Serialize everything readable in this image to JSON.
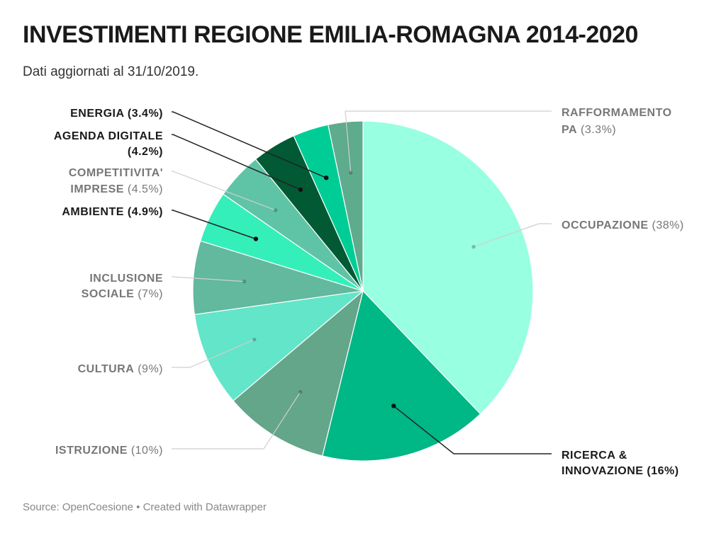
{
  "header": {
    "title": "INVESTIMENTI REGIONE EMILIA-ROMAGNA 2014-2020",
    "subtitle": "Dati aggiornati al 31/10/2019."
  },
  "footer": {
    "source_label": "Source:",
    "source": "OpenCoesione",
    "separator": "•",
    "credit": "Created with Datawrapper"
  },
  "chart_data": {
    "type": "pie",
    "slices": [
      {
        "name": "OCCUPAZIONE",
        "value": 38,
        "pct_label": "(38%)",
        "color": "#98ffe0",
        "emphasis": false,
        "lines": [
          {
            "name": "OCCUPAZIONE",
            "pct": "(38%)"
          }
        ]
      },
      {
        "name": "RICERCA & INNOVAZIONE",
        "value": 16,
        "pct_label": "(16%)",
        "color": "#00b786",
        "emphasis": true,
        "lines": [
          {
            "name": "RICERCA &",
            "pct": ""
          },
          {
            "name": "INNOVAZIONE",
            "pct": "(16%)"
          }
        ]
      },
      {
        "name": "ISTRUZIONE",
        "value": 10,
        "pct_label": "(10%)",
        "color": "#64a68a",
        "emphasis": false,
        "lines": [
          {
            "name": "ISTRUZIONE",
            "pct": "(10%)"
          }
        ]
      },
      {
        "name": "CULTURA",
        "value": 9,
        "pct_label": "(9%)",
        "color": "#62e5c8",
        "emphasis": false,
        "lines": [
          {
            "name": "CULTURA",
            "pct": "(9%)"
          }
        ]
      },
      {
        "name": "INCLUSIONE SOCIALE",
        "value": 7,
        "pct_label": "(7%)",
        "color": "#62b99d",
        "emphasis": false,
        "lines": [
          {
            "name": "INCLUSIONE",
            "pct": ""
          },
          {
            "name": "SOCIALE",
            "pct": "(7%)"
          }
        ]
      },
      {
        "name": "AMBIENTE",
        "value": 4.9,
        "pct_label": "(4.9%)",
        "color": "#35efbb",
        "emphasis": true,
        "lines": [
          {
            "name": "AMBIENTE",
            "pct": "(4.9%)"
          }
        ]
      },
      {
        "name": "COMPETITIVITA' IMPRESE",
        "value": 4.5,
        "pct_label": "(4.5%)",
        "color": "#5fc4a6",
        "emphasis": false,
        "lines": [
          {
            "name": "COMPETITIVITA'",
            "pct": ""
          },
          {
            "name": "IMPRESE",
            "pct": "(4.5%)"
          }
        ]
      },
      {
        "name": "AGENDA DIGITALE",
        "value": 4.2,
        "pct_label": "(4.2%)",
        "color": "#025a34",
        "emphasis": true,
        "lines": [
          {
            "name": "AGENDA DIGITALE",
            "pct": ""
          },
          {
            "name": "",
            "pct": "(4.2%)"
          }
        ]
      },
      {
        "name": "ENERGIA",
        "value": 3.4,
        "pct_label": "(3.4%)",
        "color": "#00cd96",
        "emphasis": true,
        "lines": [
          {
            "name": "ENERGIA",
            "pct": "(3.4%)"
          }
        ]
      },
      {
        "name": "RAFFORMAMENTO PA",
        "value": 3.3,
        "pct_label": "(3.3%)",
        "color": "#5fab8d",
        "emphasis": false,
        "lines": [
          {
            "name": "RAFFORMAMENTO",
            "pct": ""
          },
          {
            "name": "PA",
            "pct": "(3.3%)"
          }
        ]
      }
    ],
    "colors": {
      "emphasis_text": "#1a1a1a",
      "muted_text": "#777777"
    }
  }
}
